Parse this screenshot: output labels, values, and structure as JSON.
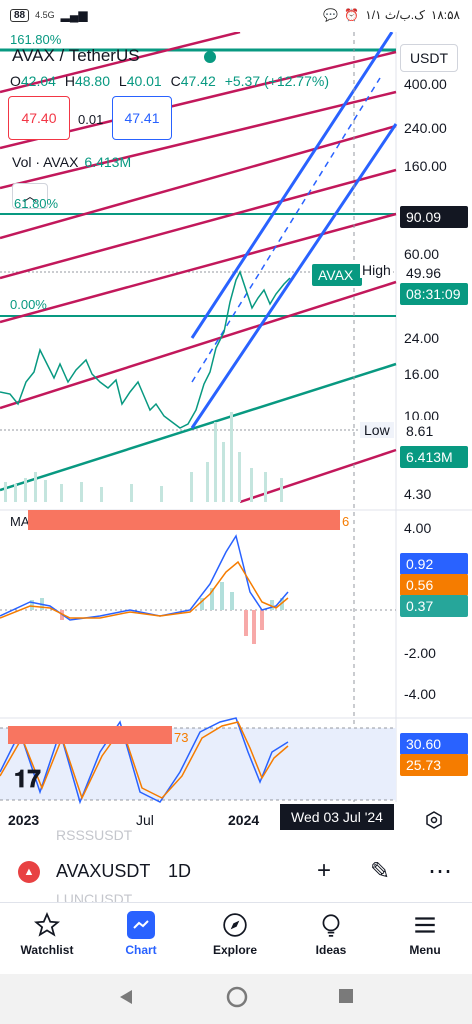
{
  "status_bar": {
    "battery": "88",
    "signal": "4.5G",
    "time": "۱۸:۵۸",
    "date": "۱/۱ ک.ب/ث"
  },
  "chart": {
    "symbol_title": "AVAX / TetherUS",
    "fib_top_label": "161.80%",
    "ohlc": {
      "o_label": "O",
      "o": "42.04",
      "h_label": "H",
      "h": "48.80",
      "l_label": "L",
      "l": "40.01",
      "c_label": "C",
      "c": "47.42",
      "change": "+5.37 (+12.77%)"
    },
    "sell_price": "47.40",
    "spread": "0.01",
    "buy_price": "47.41",
    "volume_label": "Vol · AVAX",
    "volume_value": "6.413M",
    "fib_618": "61.80%",
    "fib_0": "0.00%",
    "currency_button": "USDT",
    "scale_labels": [
      "400.00",
      "240.00",
      "160.00",
      "60.00",
      "24.00",
      "16.00",
      "10.00",
      "4.30"
    ],
    "tags": {
      "fib_price": "90.09",
      "symbol_tag": "AVAX",
      "high_label": "High",
      "high_value": "49.96",
      "countdown": "08:31:09",
      "low_label": "Low",
      "low_value": "8.61",
      "volume_tag": "6.413M"
    },
    "macd": {
      "label": "MA",
      "label_suffix": "6",
      "scale": [
        "4.00",
        "-2.00",
        "-4.00"
      ],
      "tags": [
        "0.92",
        "0.56",
        "0.37"
      ]
    },
    "stoch": {
      "label_suffix": "73",
      "tags": [
        "30.60",
        "25.73"
      ]
    },
    "date_axis": [
      "2023",
      "Jul",
      "2024"
    ],
    "crosshair_date": "Wed 03 Jul '24",
    "colors": {
      "green": "#089981",
      "red": "#f23645",
      "blue": "#2962ff",
      "orange": "#f57c00",
      "fib_red": "#c2185b"
    }
  },
  "symbol_bar": {
    "symbol": "AVAXUSDT",
    "timeframe": "1D",
    "ghost_above": "RSSSUSDT",
    "ghost_below": "LUNCUSDT"
  },
  "tabs": [
    {
      "label": "Watchlist",
      "icon": "star-icon"
    },
    {
      "label": "Chart",
      "icon": "chart-icon"
    },
    {
      "label": "Explore",
      "icon": "compass-icon"
    },
    {
      "label": "Ideas",
      "icon": "lightbulb-icon"
    },
    {
      "label": "Menu",
      "icon": "menu-icon"
    }
  ]
}
